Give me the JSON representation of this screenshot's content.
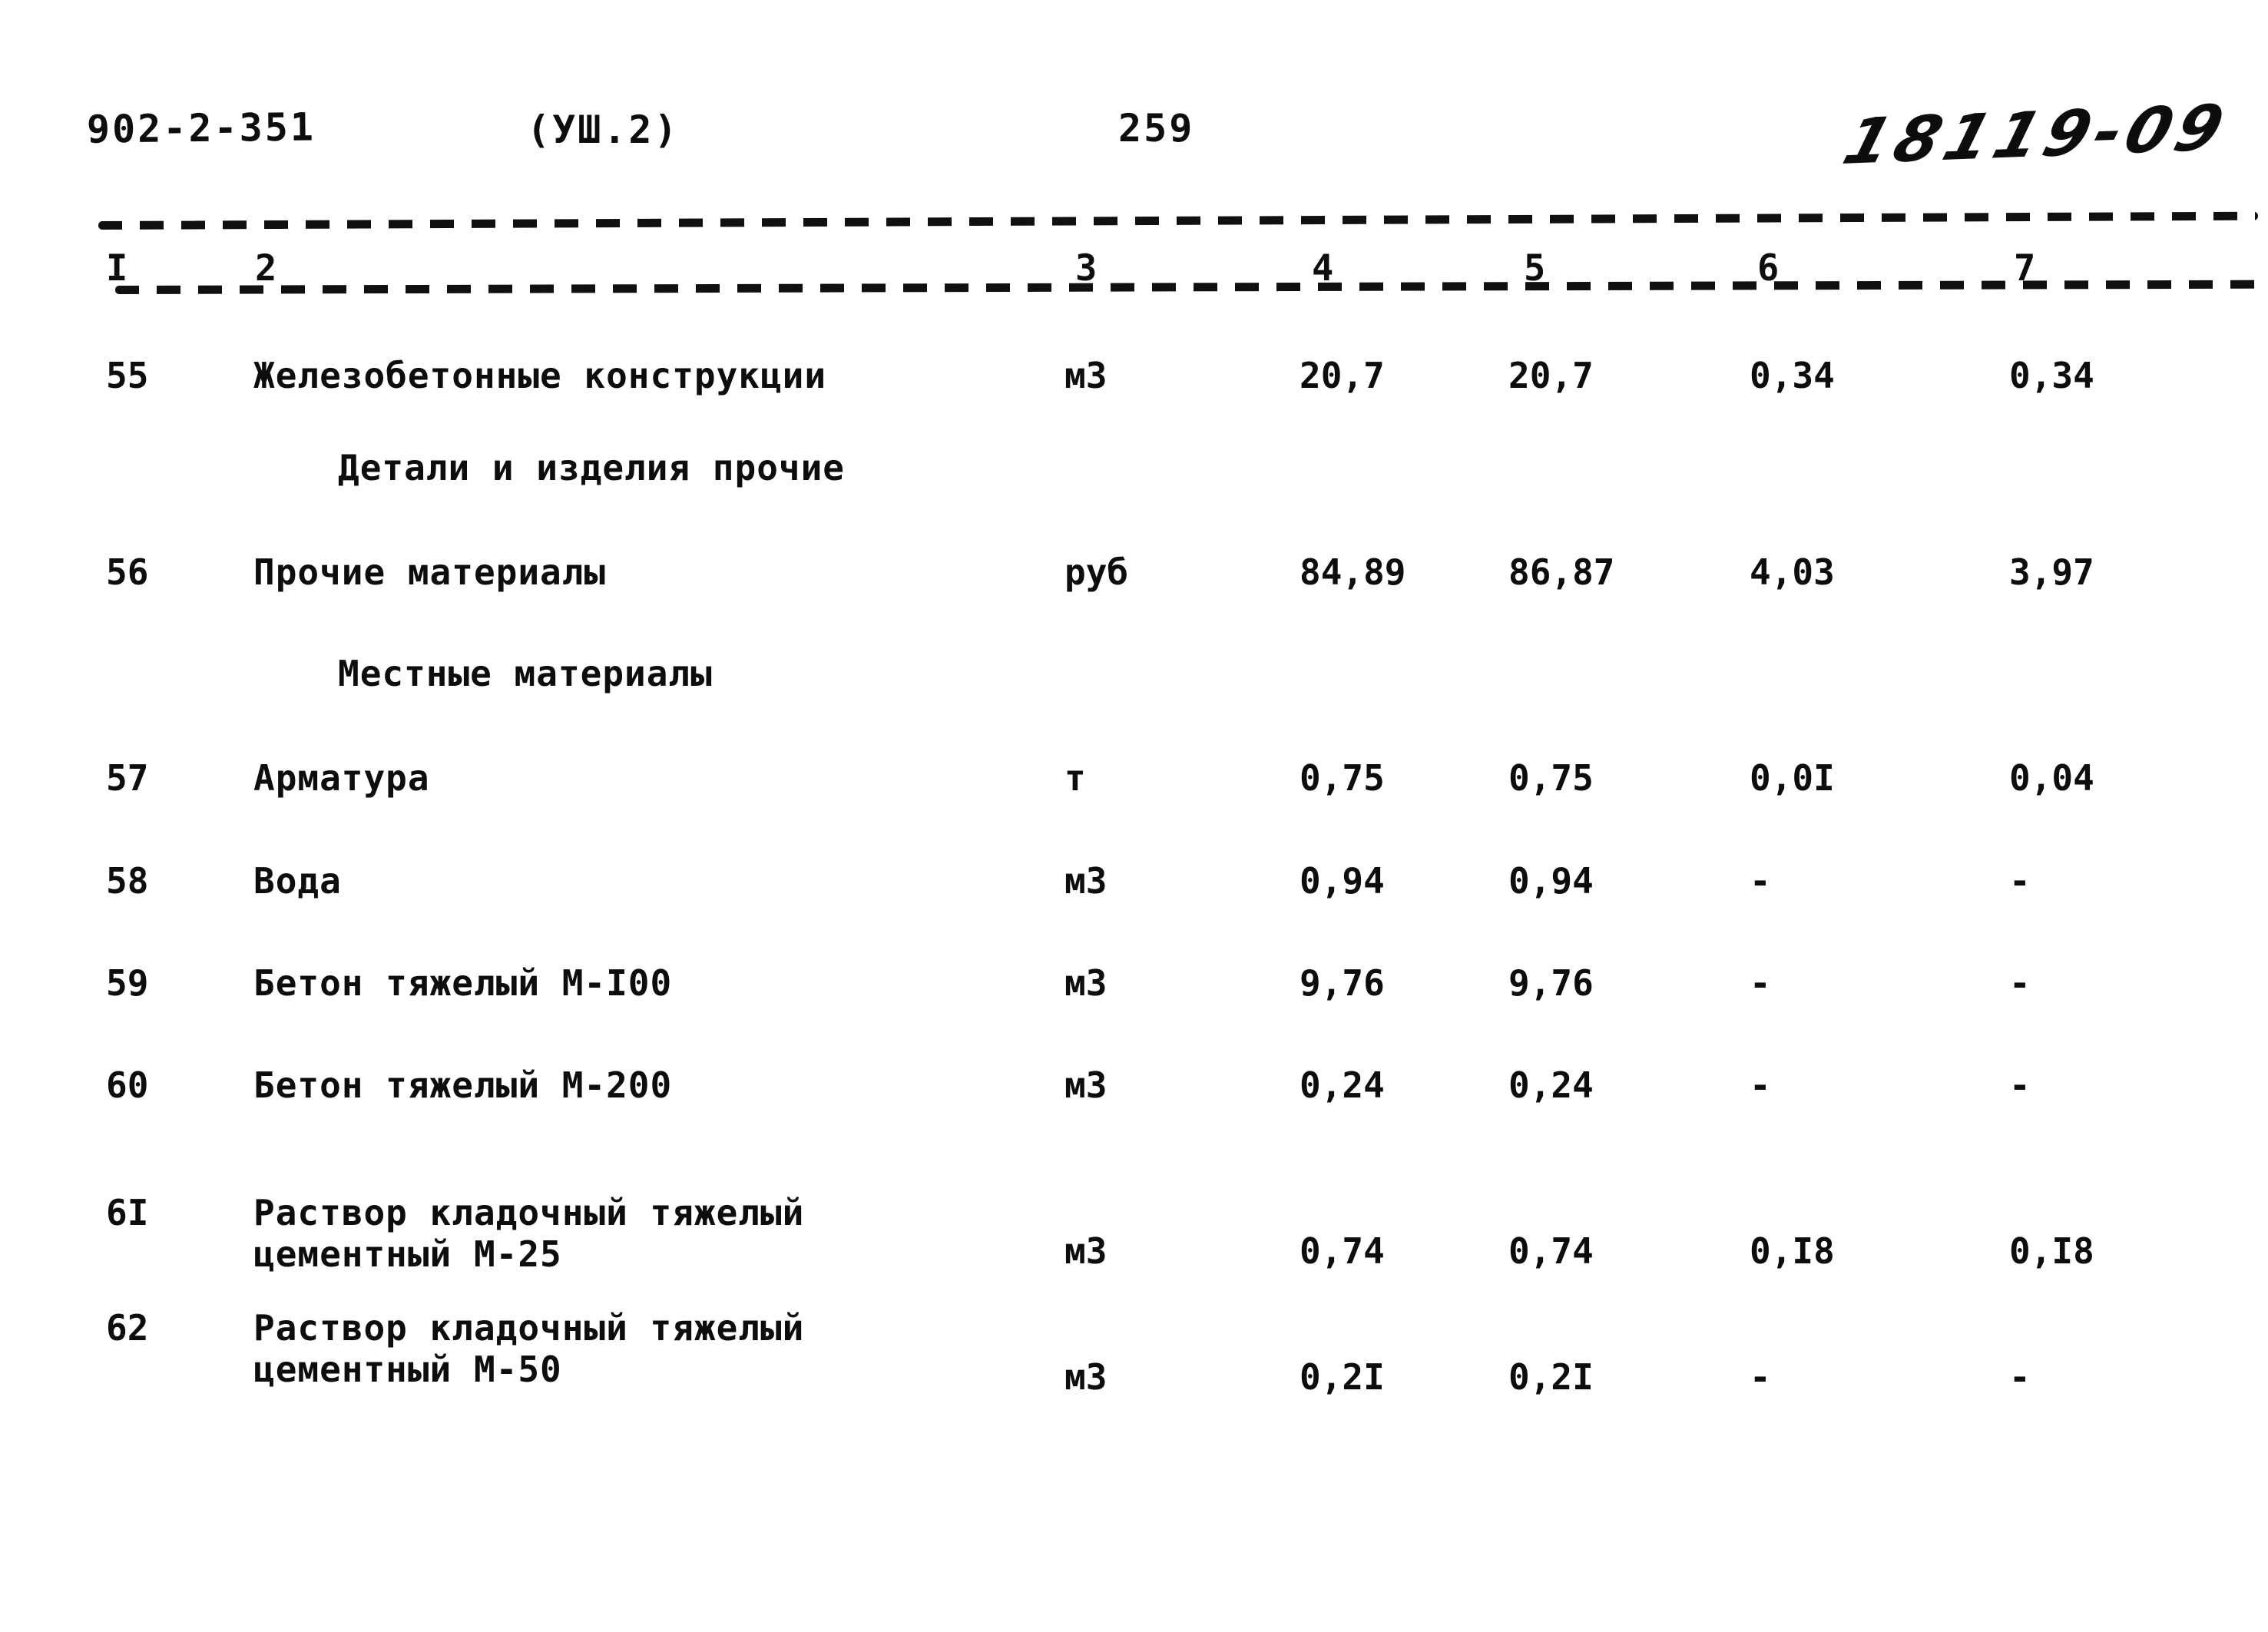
{
  "header": {
    "doc_number": "902-2-351",
    "section": "(УШ.2)",
    "page_number": "259",
    "handwritten_mark": "18119-09"
  },
  "table": {
    "column_headers": [
      "I",
      "2",
      "3",
      "4",
      "5",
      "6",
      "7"
    ],
    "rows": [
      {
        "num": "55",
        "name": "Железобетонные конструкции",
        "unit": "м3",
        "values": [
          "20,7",
          "20,7",
          "0,34",
          "0,34"
        ]
      },
      {
        "subheading": "Детали и изделия прочие"
      },
      {
        "num": "56",
        "name": "Прочие материалы",
        "unit": "руб",
        "values": [
          "84,89",
          "86,87",
          "4,03",
          "3,97"
        ]
      },
      {
        "subheading": "Местные материалы"
      },
      {
        "num": "57",
        "name": "Арматура",
        "unit": "т",
        "values": [
          "0,75",
          "0,75",
          "0,0I",
          "0,04"
        ]
      },
      {
        "num": "58",
        "name": "Вода",
        "unit": "м3",
        "values": [
          "0,94",
          "0,94",
          "-",
          "-"
        ]
      },
      {
        "num": "59",
        "name": "Бетон тяжелый М-I00",
        "unit": "м3",
        "values": [
          "9,76",
          "9,76",
          "-",
          "-"
        ]
      },
      {
        "num": "60",
        "name": "Бетон тяжелый М-200",
        "unit": "м3",
        "values": [
          "0,24",
          "0,24",
          "-",
          "-"
        ]
      },
      {
        "num": "6I",
        "name": "Раствор кладочный тяжелый\nцементный М-25",
        "unit": "м3",
        "values": [
          "0,74",
          "0,74",
          "0,I8",
          "0,I8"
        ]
      },
      {
        "num": "62",
        "name": "Раствор кладочный тяжелый\nцементный М-50",
        "unit": "м3",
        "values": [
          "0,2I",
          "0,2I",
          "-",
          "-"
        ]
      }
    ]
  }
}
